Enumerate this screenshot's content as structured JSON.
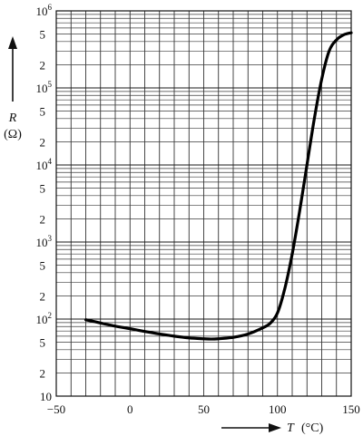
{
  "chart_data": {
    "type": "line",
    "xlabel": "T",
    "xunit": "(°C)",
    "ylabel": "R",
    "yunit": "(Ω)",
    "xlim": [
      -50,
      150
    ],
    "ylim": [
      10,
      1000000
    ],
    "yscale": "log",
    "grid": true,
    "x_ticks": [
      "−50",
      "0",
      "50",
      "100",
      "150"
    ],
    "x_tick_values": [
      -50,
      0,
      50,
      100,
      150
    ],
    "y_major_ticks": [
      {
        "value": 10,
        "base": "10",
        "exp": ""
      },
      {
        "value": 100,
        "base": "10",
        "exp": "2"
      },
      {
        "value": 1000,
        "base": "10",
        "exp": "3"
      },
      {
        "value": 10000,
        "base": "10",
        "exp": "4"
      },
      {
        "value": 100000,
        "base": "10",
        "exp": "5"
      },
      {
        "value": 1000000,
        "base": "10",
        "exp": "6"
      }
    ],
    "y_minor_ticks": [
      "2",
      "5"
    ],
    "series": [
      {
        "x": [
          -30,
          -20,
          -10,
          0,
          10,
          20,
          30,
          40,
          50,
          55,
          60,
          70,
          80,
          90,
          95,
          100,
          105,
          110,
          115,
          120,
          125,
          130,
          135,
          140,
          145,
          150
        ],
        "values": [
          98,
          89,
          81,
          75,
          69,
          64,
          60,
          57,
          55.5,
          55,
          55.5,
          58,
          64,
          77,
          88,
          120,
          250,
          700,
          2500,
          10000,
          40000,
          130000,
          300000,
          420000,
          490000,
          520000
        ]
      }
    ]
  }
}
